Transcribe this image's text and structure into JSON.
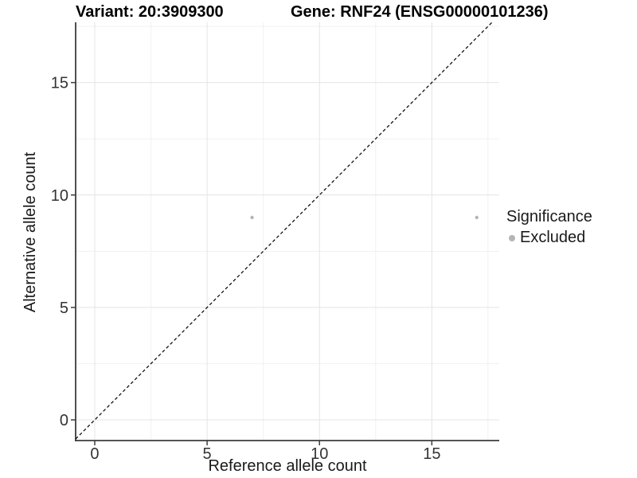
{
  "chart_data": {
    "type": "scatter",
    "title_left": "Variant: 20:3909300",
    "title_right": "Gene: RNF24 (ENSG00000101236)",
    "xlabel": "Reference allele count",
    "ylabel": "Alternative allele count",
    "xlim": [
      -0.85,
      18.0
    ],
    "ylim": [
      -0.92,
      17.68
    ],
    "xticks": [
      0,
      5,
      10,
      15
    ],
    "yticks": [
      0,
      5,
      10,
      15
    ],
    "minor_xticks": [
      2.5,
      7.5,
      12.5,
      17.5
    ],
    "minor_yticks": [
      2.5,
      7.5,
      12.5,
      17.5
    ],
    "grid": true,
    "reference_line": {
      "type": "identity",
      "style": "dashed",
      "color": "#000000"
    },
    "series": [
      {
        "name": "Excluded",
        "color": "#b5b5b5",
        "points": [
          {
            "x": 7,
            "y": 9
          },
          {
            "x": 17,
            "y": 9
          }
        ]
      }
    ],
    "legend": {
      "title": "Significance",
      "position": "right",
      "items": [
        {
          "label": "Excluded",
          "color": "#b5b5b5"
        }
      ]
    },
    "colors": {
      "grid_major": "#e4e4e4",
      "grid_minor": "#f1f1f1",
      "axis": "#3d3d3d",
      "tick_label": "#333333",
      "title": "#000000",
      "background": "#ffffff"
    }
  }
}
